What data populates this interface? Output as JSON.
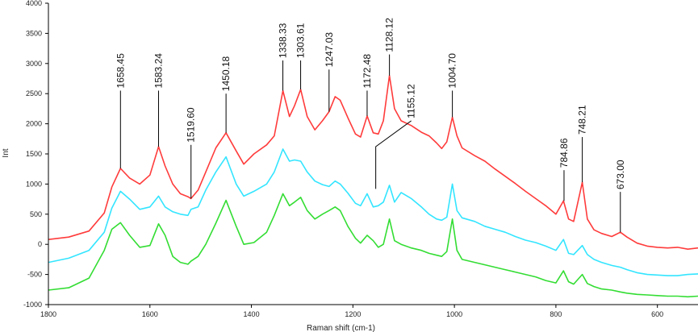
{
  "chart_data": {
    "type": "line",
    "title": "",
    "xlabel": "Raman shift (cm-1)",
    "ylabel": "Int",
    "xlim": [
      1800,
      520
    ],
    "ylim": [
      -1000,
      4000
    ],
    "x_direction": "reversed",
    "grid": false,
    "legend": "none",
    "x_ticks": [
      "1800",
      "1600",
      "1400",
      "1200",
      "1000",
      "800",
      "600"
    ],
    "y_ticks": [
      "-1000",
      "-500",
      "0",
      "500",
      "1000",
      "1500",
      "2000",
      "2500",
      "3000",
      "3500",
      "4000"
    ],
    "series": [
      {
        "color": "#ff3b3b",
        "points": [
          [
            1800,
            80
          ],
          [
            1760,
            120
          ],
          [
            1720,
            220
          ],
          [
            1690,
            520
          ],
          [
            1675,
            950
          ],
          [
            1658,
            1260
          ],
          [
            1640,
            1100
          ],
          [
            1620,
            1000
          ],
          [
            1600,
            1150
          ],
          [
            1583,
            1620
          ],
          [
            1570,
            1300
          ],
          [
            1555,
            1000
          ],
          [
            1540,
            840
          ],
          [
            1525,
            790
          ],
          [
            1519,
            760
          ],
          [
            1505,
            900
          ],
          [
            1490,
            1200
          ],
          [
            1470,
            1600
          ],
          [
            1450,
            1850
          ],
          [
            1430,
            1550
          ],
          [
            1415,
            1330
          ],
          [
            1395,
            1500
          ],
          [
            1370,
            1650
          ],
          [
            1355,
            1800
          ],
          [
            1338,
            2550
          ],
          [
            1325,
            2120
          ],
          [
            1315,
            2300
          ],
          [
            1303,
            2570
          ],
          [
            1290,
            2120
          ],
          [
            1275,
            1900
          ],
          [
            1260,
            2050
          ],
          [
            1247,
            2200
          ],
          [
            1235,
            2450
          ],
          [
            1225,
            2390
          ],
          [
            1210,
            2100
          ],
          [
            1195,
            1830
          ],
          [
            1185,
            1780
          ],
          [
            1172,
            2130
          ],
          [
            1160,
            1850
          ],
          [
            1150,
            1830
          ],
          [
            1140,
            2050
          ],
          [
            1128,
            2800
          ],
          [
            1118,
            2250
          ],
          [
            1105,
            2050
          ],
          [
            1085,
            1970
          ],
          [
            1065,
            1860
          ],
          [
            1050,
            1800
          ],
          [
            1035,
            1680
          ],
          [
            1025,
            1590
          ],
          [
            1015,
            1700
          ],
          [
            1004,
            2110
          ],
          [
            995,
            1800
          ],
          [
            985,
            1600
          ],
          [
            960,
            1470
          ],
          [
            940,
            1380
          ],
          [
            920,
            1250
          ],
          [
            900,
            1130
          ],
          [
            880,
            1010
          ],
          [
            860,
            880
          ],
          [
            840,
            760
          ],
          [
            820,
            640
          ],
          [
            800,
            500
          ],
          [
            785,
            720
          ],
          [
            775,
            420
          ],
          [
            765,
            380
          ],
          [
            748,
            1030
          ],
          [
            738,
            420
          ],
          [
            725,
            240
          ],
          [
            710,
            180
          ],
          [
            690,
            130
          ],
          [
            673,
            200
          ],
          [
            660,
            120
          ],
          [
            640,
            20
          ],
          [
            620,
            -30
          ],
          [
            600,
            -50
          ],
          [
            580,
            -60
          ],
          [
            560,
            -50
          ],
          [
            540,
            -80
          ],
          [
            520,
            -60
          ]
        ]
      },
      {
        "color": "#33e5ff",
        "points": [
          [
            1800,
            -300
          ],
          [
            1760,
            -230
          ],
          [
            1720,
            -100
          ],
          [
            1690,
            200
          ],
          [
            1675,
            600
          ],
          [
            1658,
            880
          ],
          [
            1640,
            750
          ],
          [
            1620,
            580
          ],
          [
            1600,
            620
          ],
          [
            1583,
            800
          ],
          [
            1570,
            620
          ],
          [
            1555,
            540
          ],
          [
            1540,
            500
          ],
          [
            1525,
            480
          ],
          [
            1519,
            580
          ],
          [
            1505,
            620
          ],
          [
            1490,
            900
          ],
          [
            1470,
            1200
          ],
          [
            1450,
            1450
          ],
          [
            1430,
            1000
          ],
          [
            1415,
            800
          ],
          [
            1395,
            880
          ],
          [
            1370,
            1000
          ],
          [
            1355,
            1200
          ],
          [
            1338,
            1580
          ],
          [
            1325,
            1380
          ],
          [
            1315,
            1400
          ],
          [
            1303,
            1380
          ],
          [
            1290,
            1200
          ],
          [
            1275,
            1050
          ],
          [
            1260,
            990
          ],
          [
            1247,
            960
          ],
          [
            1235,
            1050
          ],
          [
            1225,
            1000
          ],
          [
            1210,
            850
          ],
          [
            1195,
            680
          ],
          [
            1185,
            640
          ],
          [
            1172,
            840
          ],
          [
            1160,
            620
          ],
          [
            1150,
            640
          ],
          [
            1140,
            700
          ],
          [
            1128,
            980
          ],
          [
            1118,
            700
          ],
          [
            1105,
            860
          ],
          [
            1085,
            760
          ],
          [
            1065,
            620
          ],
          [
            1050,
            500
          ],
          [
            1035,
            420
          ],
          [
            1025,
            400
          ],
          [
            1015,
            450
          ],
          [
            1004,
            1000
          ],
          [
            995,
            560
          ],
          [
            985,
            440
          ],
          [
            960,
            380
          ],
          [
            940,
            300
          ],
          [
            920,
            250
          ],
          [
            900,
            200
          ],
          [
            880,
            130
          ],
          [
            860,
            70
          ],
          [
            840,
            30
          ],
          [
            820,
            -30
          ],
          [
            800,
            -100
          ],
          [
            785,
            80
          ],
          [
            775,
            -150
          ],
          [
            765,
            -170
          ],
          [
            748,
            -20
          ],
          [
            738,
            -170
          ],
          [
            725,
            -250
          ],
          [
            710,
            -300
          ],
          [
            690,
            -350
          ],
          [
            673,
            -380
          ],
          [
            660,
            -420
          ],
          [
            640,
            -470
          ],
          [
            620,
            -500
          ],
          [
            600,
            -510
          ],
          [
            580,
            -520
          ],
          [
            560,
            -520
          ],
          [
            540,
            -500
          ],
          [
            520,
            -490
          ]
        ]
      },
      {
        "color": "#33dd33",
        "points": [
          [
            1800,
            -760
          ],
          [
            1760,
            -720
          ],
          [
            1720,
            -560
          ],
          [
            1690,
            -100
          ],
          [
            1675,
            250
          ],
          [
            1658,
            360
          ],
          [
            1640,
            150
          ],
          [
            1620,
            -50
          ],
          [
            1600,
            -20
          ],
          [
            1583,
            340
          ],
          [
            1570,
            150
          ],
          [
            1555,
            -200
          ],
          [
            1540,
            -300
          ],
          [
            1525,
            -330
          ],
          [
            1519,
            -280
          ],
          [
            1505,
            -200
          ],
          [
            1490,
            0
          ],
          [
            1470,
            350
          ],
          [
            1450,
            730
          ],
          [
            1430,
            300
          ],
          [
            1415,
            0
          ],
          [
            1395,
            30
          ],
          [
            1370,
            200
          ],
          [
            1355,
            480
          ],
          [
            1338,
            840
          ],
          [
            1325,
            640
          ],
          [
            1315,
            700
          ],
          [
            1303,
            780
          ],
          [
            1290,
            560
          ],
          [
            1275,
            420
          ],
          [
            1260,
            500
          ],
          [
            1247,
            560
          ],
          [
            1235,
            620
          ],
          [
            1225,
            560
          ],
          [
            1210,
            300
          ],
          [
            1195,
            100
          ],
          [
            1185,
            20
          ],
          [
            1172,
            150
          ],
          [
            1160,
            60
          ],
          [
            1150,
            -50
          ],
          [
            1140,
            0
          ],
          [
            1128,
            420
          ],
          [
            1118,
            60
          ],
          [
            1105,
            0
          ],
          [
            1085,
            -60
          ],
          [
            1065,
            -100
          ],
          [
            1050,
            -150
          ],
          [
            1035,
            -180
          ],
          [
            1025,
            -200
          ],
          [
            1015,
            -120
          ],
          [
            1004,
            420
          ],
          [
            995,
            -100
          ],
          [
            985,
            -250
          ],
          [
            960,
            -300
          ],
          [
            940,
            -340
          ],
          [
            920,
            -380
          ],
          [
            900,
            -420
          ],
          [
            880,
            -460
          ],
          [
            860,
            -500
          ],
          [
            840,
            -540
          ],
          [
            820,
            -600
          ],
          [
            800,
            -640
          ],
          [
            785,
            -440
          ],
          [
            775,
            -620
          ],
          [
            765,
            -660
          ],
          [
            748,
            -500
          ],
          [
            738,
            -650
          ],
          [
            725,
            -700
          ],
          [
            710,
            -740
          ],
          [
            690,
            -760
          ],
          [
            673,
            -790
          ],
          [
            660,
            -810
          ],
          [
            640,
            -830
          ],
          [
            620,
            -840
          ],
          [
            600,
            -850
          ],
          [
            580,
            -860
          ],
          [
            560,
            -860
          ],
          [
            540,
            -870
          ],
          [
            520,
            -860
          ]
        ]
      }
    ],
    "annotations": [
      {
        "text": "1658.45",
        "x": 1658,
        "y": 1260,
        "label_x": 1658,
        "label_y": 2550
      },
      {
        "text": "1583.24",
        "x": 1583,
        "y": 1620,
        "label_x": 1583,
        "label_y": 2550
      },
      {
        "text": "1519.60",
        "x": 1519,
        "y": 760,
        "label_x": 1519,
        "label_y": 1650
      },
      {
        "text": "1450.18",
        "x": 1450,
        "y": 1850,
        "label_x": 1450,
        "label_y": 2500
      },
      {
        "text": "1338.33",
        "x": 1338,
        "y": 2550,
        "label_x": 1338,
        "label_y": 3050
      },
      {
        "text": "1303.61",
        "x": 1303,
        "y": 2570,
        "label_x": 1303,
        "label_y": 3050
      },
      {
        "text": "1247.03",
        "x": 1247,
        "y": 2200,
        "label_x": 1247,
        "label_y": 2900
      },
      {
        "text": "1172.48",
        "x": 1172,
        "y": 2130,
        "label_x": 1172,
        "label_y": 2550
      },
      {
        "text": "1128.12",
        "x": 1128,
        "y": 2800,
        "label_x": 1128,
        "label_y": 3150
      },
      {
        "text": "1155.12",
        "x": 1155,
        "y": 920,
        "label_x": 1085,
        "label_y": 2050
      },
      {
        "text": "1004.70",
        "x": 1004,
        "y": 2110,
        "label_x": 1004,
        "label_y": 2550
      },
      {
        "text": "784.86",
        "x": 784,
        "y": 720,
        "label_x": 784,
        "label_y": 1230
      },
      {
        "text": "748.21",
        "x": 748,
        "y": 1030,
        "label_x": 748,
        "label_y": 1780
      },
      {
        "text": "673.00",
        "x": 673,
        "y": 200,
        "label_x": 673,
        "label_y": 870
      }
    ]
  }
}
